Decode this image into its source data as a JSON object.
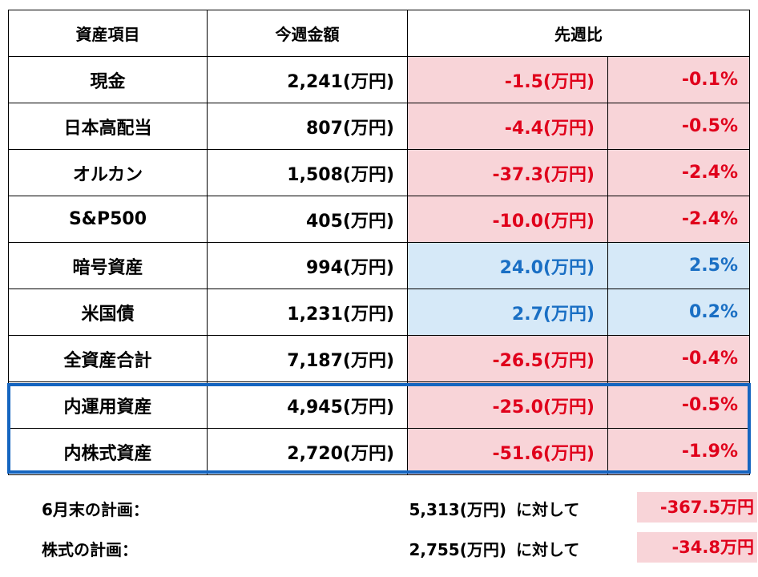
{
  "table": {
    "headers": {
      "item": "資産項目",
      "this_week": "今週金額",
      "vs_last_week": "先週比"
    },
    "rows": [
      {
        "name": "現金",
        "amount": "2,241(万円)",
        "diff": "-1.5(万円)",
        "pct": "-0.1%",
        "trend": "neg"
      },
      {
        "name": "日本高配当",
        "amount": "807(万円)",
        "diff": "-4.4(万円)",
        "pct": "-0.5%",
        "trend": "neg"
      },
      {
        "name": "オルカン",
        "amount": "1,508(万円)",
        "diff": "-37.3(万円)",
        "pct": "-2.4%",
        "trend": "neg"
      },
      {
        "name": "S&P500",
        "amount": "405(万円)",
        "diff": "-10.0(万円)",
        "pct": "-2.4%",
        "trend": "neg"
      },
      {
        "name": "暗号資産",
        "amount": "994(万円)",
        "diff": "24.0(万円)",
        "pct": "2.5%",
        "trend": "pos"
      },
      {
        "name": "米国債",
        "amount": "1,231(万円)",
        "diff": "2.7(万円)",
        "pct": "0.2%",
        "trend": "pos"
      },
      {
        "name": "全資産合計",
        "amount": "7,187(万円)",
        "diff": "-26.5(万円)",
        "pct": "-0.4%",
        "trend": "neg"
      },
      {
        "name": "内運用資産",
        "amount": "4,945(万円)",
        "diff": "-25.0(万円)",
        "pct": "-0.5%",
        "trend": "neg"
      },
      {
        "name": "内株式資産",
        "amount": "2,720(万円)",
        "diff": "-51.6(万円)",
        "pct": "-1.9%",
        "trend": "neg"
      }
    ]
  },
  "plans": [
    {
      "label": "6月末の計画：",
      "value": "5,313(万円)",
      "suffix": "に対して",
      "diff": "-367.5万円"
    },
    {
      "label": "株式の計画：",
      "value": "2,755(万円)",
      "suffix": "に対して",
      "diff": "-34.8万円"
    }
  ],
  "colors": {
    "negative_text": "#e0001b",
    "negative_bg": "#f8d4d8",
    "positive_text": "#1a6fc4",
    "positive_bg": "#d6e9f8",
    "highlight_border": "#1565c0"
  }
}
